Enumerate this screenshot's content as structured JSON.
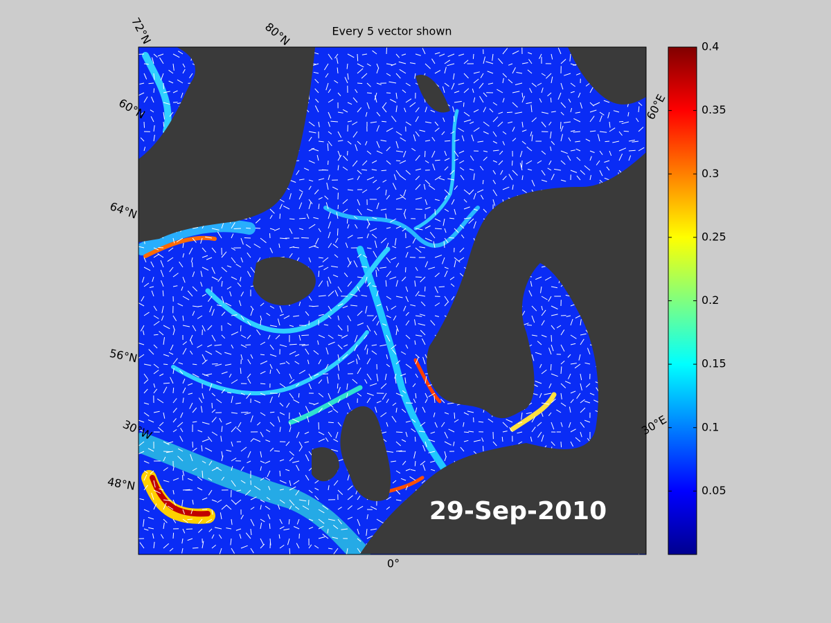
{
  "title": "Every 5 vector shown",
  "date": "29-Sep-2010",
  "graticule_labels": [
    "72°N",
    "80°N",
    "60°N",
    "64°N",
    "56°N",
    "30°W",
    "48°N",
    "0°",
    "30°E",
    "60°E"
  ],
  "colorbar": {
    "lim": [
      0,
      0.4
    ],
    "ticks": [
      0.05,
      0.1,
      0.15,
      0.2,
      0.25,
      0.3,
      0.35,
      0.4
    ]
  }
}
